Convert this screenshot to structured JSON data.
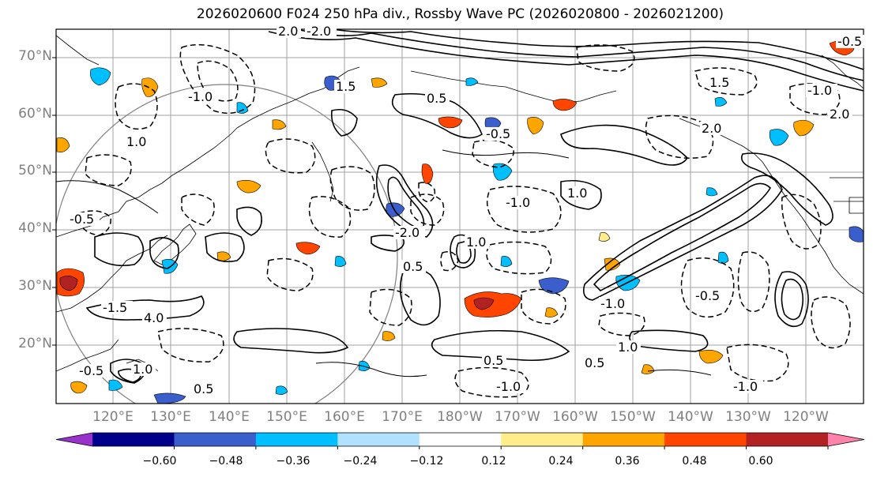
{
  "title": "2026020600 F024 250 hPa div., Rossby Wave PC (2026020800 - 2026021200)",
  "map": {
    "lat_ticks": [
      "70°N",
      "60°N",
      "50°N",
      "40°N",
      "30°N",
      "20°N"
    ],
    "lon_ticks": [
      "120°E",
      "130°E",
      "140°E",
      "150°E",
      "160°E",
      "170°E",
      "180°W",
      "170°W",
      "160°W",
      "150°W",
      "140°W",
      "130°W",
      "120°W"
    ],
    "contour_labels": [
      "-0.5",
      "1.0",
      "-1.0",
      "2.0",
      "-2.0",
      "1.5",
      "-1.5",
      "4.0",
      "0.5",
      "-0.5",
      "1.0",
      "-1.0",
      "-0.5",
      "2.0",
      "0.5",
      "-1.0",
      "1.0",
      "-0.5",
      "0.5",
      "-1.0",
      "1.5",
      "-1.0",
      "2.0",
      "-0.5",
      "1.0",
      "0.5",
      "-2.0",
      "0.5",
      "1.0",
      "-1.0"
    ],
    "colors": {
      "coast": "#000000",
      "grid": "#a0a0a0",
      "tick_label": "#808080"
    }
  },
  "colorbar": {
    "ticks": [
      "−0.60",
      "−0.48",
      "−0.36",
      "−0.24",
      "−0.12",
      "0.12",
      "0.24",
      "0.36",
      "0.48",
      "0.60"
    ],
    "colors": [
      "#9932cc",
      "#00008b",
      "#3a5fcd",
      "#00bfff",
      "#b0e2ff",
      "#ffffff",
      "#ffec8b",
      "#ffa500",
      "#ff4500",
      "#b22222",
      "#ff82ab"
    ]
  }
}
